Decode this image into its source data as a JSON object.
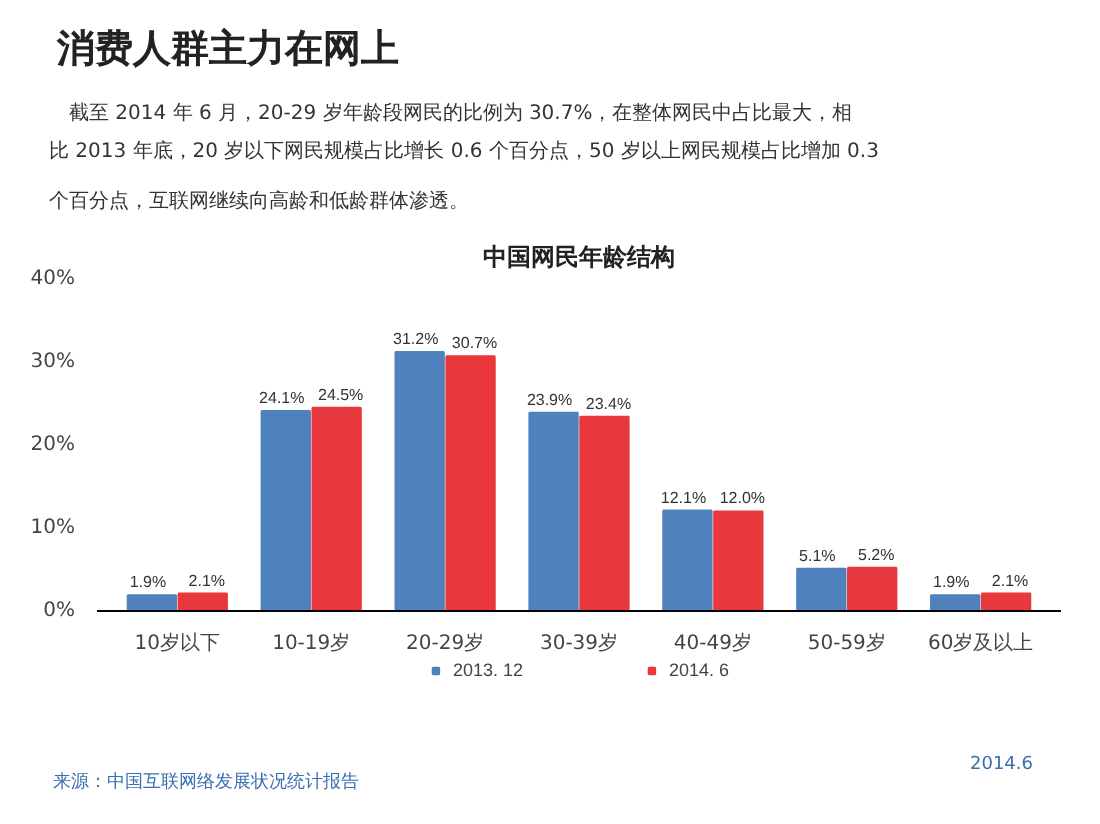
{
  "chart_data": {
    "type": "bar",
    "title": "中国网民年龄结构",
    "categories": [
      "10岁以下",
      "10-19岁",
      "20-29岁",
      "30-39岁",
      "40-49岁",
      "50-59岁",
      "60岁及以上"
    ],
    "series": [
      {
        "name": "2013. 12",
        "color": "#4f81bd",
        "values": [
          1.9,
          24.1,
          31.2,
          23.9,
          12.1,
          5.1,
          1.9
        ],
        "value_labels": [
          "1.9%",
          "24.1%",
          "31.2%",
          "23.9%",
          "12.1%",
          "5.1%",
          "1.9%"
        ]
      },
      {
        "name": "2014. 6",
        "color": "#e8383d",
        "values": [
          2.1,
          24.5,
          30.7,
          23.4,
          12.0,
          5.2,
          2.1
        ],
        "value_labels": [
          "2.1%",
          "24.5%",
          "30.7%",
          "23.4%",
          "12.0%",
          "5.2%",
          "2.1%"
        ]
      }
    ],
    "ylim": [
      0,
      40
    ],
    "yticks": [
      {
        "value": 0,
        "label": "0%"
      },
      {
        "value": 10,
        "label": "10%"
      },
      {
        "value": 20,
        "label": "20%"
      },
      {
        "value": 30,
        "label": "30%"
      },
      {
        "value": 40,
        "label": "40%"
      }
    ],
    "grid": false,
    "legend": "bottom",
    "annotations": [
      "消费人群主力在网上",
      "截至 2014 年 6 月，20-29 岁年龄段网民的比例为 30.7%，在整体网民中占比最大，相",
      "比 2013 年底，20 岁以下网民规模占比增长 0.6 个百分点，50 岁以上网民规模占比增加 0.3",
      "个百分点，互联网继续向高龄和低龄群体渗透。",
      "来源：中国互联网络发展状况统计报告",
      "2014.6"
    ]
  }
}
